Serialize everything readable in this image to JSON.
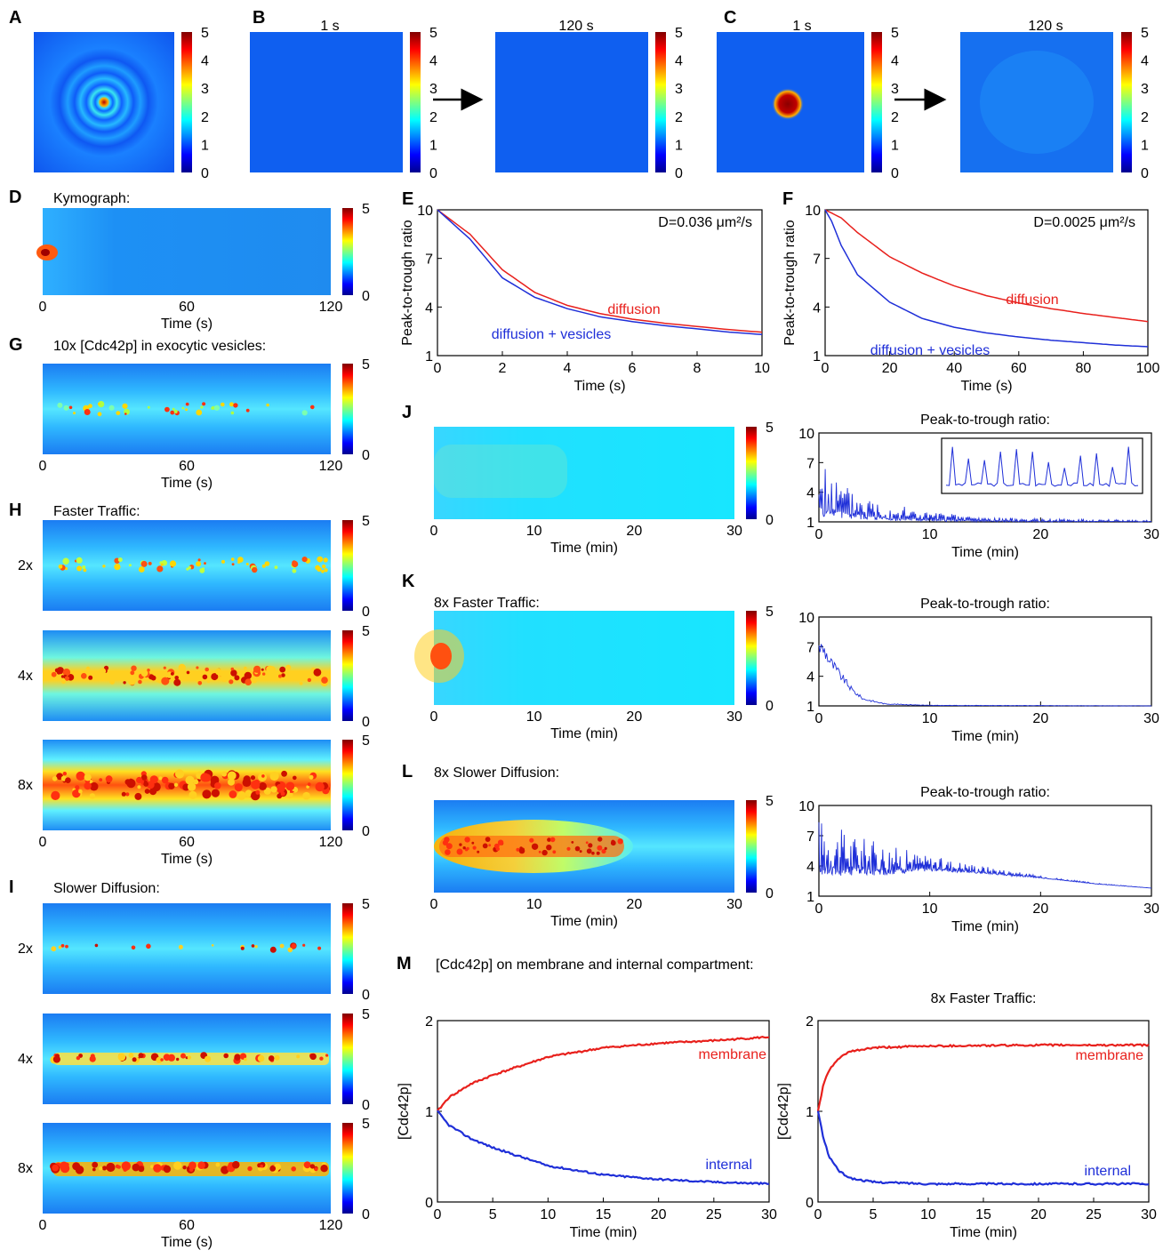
{
  "panels": {
    "A": {
      "label": "A"
    },
    "B": {
      "label": "B",
      "time_start": "1 s",
      "time_end": "120 s"
    },
    "C": {
      "label": "C",
      "time_start": "1 s",
      "time_end": "120 s"
    },
    "D": {
      "label": "D",
      "title": "Kymograph:"
    },
    "E": {
      "label": "E",
      "annotation": "D=0.036 μm²/s"
    },
    "F": {
      "label": "F",
      "annotation": "D=0.0025 μm²/s"
    },
    "G": {
      "label": "G",
      "title": "10x [Cdc42p] in exocytic vesicles:"
    },
    "H": {
      "label": "H",
      "title": "Faster Traffic:",
      "rows": [
        "2x",
        "4x",
        "8x"
      ]
    },
    "I": {
      "label": "I",
      "title": "Slower Diffusion:",
      "rows": [
        "2x",
        "4x",
        "8x"
      ]
    },
    "J": {
      "label": "J",
      "plot_title": "Peak-to-trough ratio:"
    },
    "K": {
      "label": "K",
      "title": "8x Faster Traffic:",
      "plot_title": "Peak-to-trough ratio:"
    },
    "L": {
      "label": "L",
      "title": "8x Slower Diffusion:",
      "plot_title": "Peak-to-trough ratio:"
    },
    "M": {
      "label": "M",
      "title": "[Cdc42p] on membrane and internal compartment:",
      "right_title": "8x Faster Traffic:"
    }
  },
  "axes": {
    "time_s": "Time (s)",
    "time_min": "Time (min)",
    "ptr": "Peak-to-trough ratio",
    "cdc42": "[Cdc42p]"
  },
  "colorbar_ticks_full": [
    "0",
    "1",
    "2",
    "3",
    "4",
    "5"
  ],
  "colorbar_ticks_short": [
    "0",
    "5"
  ],
  "kymo_ticks_s": [
    "0",
    "60",
    "120"
  ],
  "kymo_ticks_min": [
    "0",
    "10",
    "20",
    "30"
  ],
  "colors": {
    "diffusion": "#e8201c",
    "vesicles": "#1f2fd8",
    "membrane": "#e8201c",
    "internal": "#1f2fd8"
  },
  "chart_data": [
    {
      "id": "E",
      "type": "line",
      "xlabel": "Time (s)",
      "ylabel": "Peak-to-trough ratio",
      "xlim": [
        0,
        10
      ],
      "ylim": [
        1,
        10
      ],
      "xticks": [
        0,
        2,
        4,
        6,
        8,
        10
      ],
      "yticks": [
        1,
        4,
        7,
        10
      ],
      "series": [
        {
          "name": "diffusion",
          "color": "#e8201c",
          "x": [
            0,
            1,
            2,
            3,
            4,
            5,
            6,
            7,
            8,
            9,
            10
          ],
          "y": [
            10,
            8.5,
            6.3,
            4.9,
            4.1,
            3.6,
            3.25,
            3.0,
            2.8,
            2.6,
            2.45
          ]
        },
        {
          "name": "diffusion + vesicles",
          "color": "#1f2fd8",
          "x": [
            0,
            1,
            2,
            3,
            4,
            5,
            6,
            7,
            8,
            9,
            10
          ],
          "y": [
            10,
            8.2,
            5.8,
            4.6,
            3.9,
            3.4,
            3.1,
            2.85,
            2.65,
            2.45,
            2.3
          ]
        }
      ]
    },
    {
      "id": "F",
      "type": "line",
      "xlabel": "Time (s)",
      "ylabel": "Peak-to-trough ratio",
      "xlim": [
        0,
        100
      ],
      "ylim": [
        1,
        10
      ],
      "xticks": [
        0,
        20,
        40,
        60,
        80,
        100
      ],
      "yticks": [
        1,
        4,
        7,
        10
      ],
      "series": [
        {
          "name": "diffusion",
          "color": "#e8201c",
          "x": [
            0,
            5,
            10,
            20,
            30,
            40,
            50,
            60,
            70,
            80,
            90,
            100
          ],
          "y": [
            10,
            9.5,
            8.6,
            7.1,
            6.1,
            5.3,
            4.7,
            4.25,
            3.9,
            3.6,
            3.35,
            3.1
          ]
        },
        {
          "name": "diffusion + vesicles",
          "color": "#1f2fd8",
          "x": [
            0,
            2,
            5,
            10,
            20,
            30,
            40,
            50,
            60,
            70,
            80,
            90,
            100
          ],
          "y": [
            10,
            9.3,
            7.8,
            6.0,
            4.3,
            3.3,
            2.75,
            2.4,
            2.15,
            1.95,
            1.8,
            1.65,
            1.55
          ]
        }
      ]
    },
    {
      "id": "J",
      "type": "line",
      "title": "Peak-to-trough ratio:",
      "xlabel": "Time (min)",
      "xlim": [
        0,
        30
      ],
      "ylim": [
        1,
        10
      ],
      "xticks": [
        0,
        10,
        20,
        30
      ],
      "yticks": [
        1,
        4,
        7,
        10
      ],
      "series": [
        {
          "color": "#1f2fd8",
          "x": [
            0,
            1,
            2,
            4,
            6,
            10,
            15,
            20,
            30
          ],
          "y_peak": [
            7,
            6,
            5,
            3.8,
            3,
            2,
            1.5,
            1.3,
            1.2
          ],
          "y_base": [
            1.5,
            1.4,
            1.3,
            1.2,
            1.1,
            1.05,
            1,
            1,
            1
          ]
        }
      ]
    },
    {
      "id": "K",
      "type": "line",
      "title": "Peak-to-trough ratio:",
      "xlabel": "Time (min)",
      "xlim": [
        0,
        30
      ],
      "ylim": [
        1,
        10
      ],
      "xticks": [
        0,
        10,
        20,
        30
      ],
      "yticks": [
        1,
        4,
        7,
        10
      ],
      "series": [
        {
          "color": "#1f2fd8",
          "x": [
            0,
            0.5,
            1,
            2,
            3,
            4,
            6,
            10,
            30
          ],
          "y": [
            7,
            6.6,
            5.5,
            4,
            2.6,
            1.7,
            1.2,
            1.05,
            1
          ]
        }
      ]
    },
    {
      "id": "L",
      "type": "line",
      "title": "Peak-to-trough ratio:",
      "xlabel": "Time (min)",
      "xlim": [
        0,
        30
      ],
      "ylim": [
        1,
        10
      ],
      "xticks": [
        0,
        10,
        20,
        30
      ],
      "yticks": [
        1,
        4,
        7,
        10
      ],
      "series": [
        {
          "color": "#1f2fd8",
          "x": [
            0,
            1,
            5,
            10,
            15,
            20,
            25,
            30
          ],
          "y_peak": [
            9,
            8,
            6.5,
            5,
            4,
            3,
            2.3,
            1.8
          ],
          "y_base": [
            3,
            3,
            3,
            3.5,
            3.2,
            2.8,
            2.2,
            1.8
          ]
        }
      ]
    },
    {
      "id": "M-left",
      "type": "line",
      "xlabel": "Time (min)",
      "ylabel": "[Cdc42p]",
      "xlim": [
        0,
        30
      ],
      "ylim": [
        0,
        2
      ],
      "xticks": [
        0,
        5,
        10,
        15,
        20,
        25,
        30
      ],
      "yticks": [
        0,
        1,
        2
      ],
      "series": [
        {
          "name": "membrane",
          "color": "#e8201c",
          "x": [
            0,
            1,
            3,
            5,
            10,
            15,
            20,
            25,
            30
          ],
          "y": [
            1,
            1.15,
            1.3,
            1.4,
            1.6,
            1.7,
            1.75,
            1.78,
            1.82
          ]
        },
        {
          "name": "internal",
          "color": "#1f2fd8",
          "x": [
            0,
            1,
            3,
            5,
            10,
            15,
            20,
            25,
            30
          ],
          "y": [
            1,
            0.85,
            0.7,
            0.6,
            0.4,
            0.3,
            0.25,
            0.22,
            0.2
          ]
        }
      ]
    },
    {
      "id": "M-right",
      "type": "line",
      "title": "8x Faster Traffic:",
      "xlabel": "Time (min)",
      "ylabel": "[Cdc42p]",
      "xlim": [
        0,
        30
      ],
      "ylim": [
        0,
        2
      ],
      "xticks": [
        0,
        5,
        10,
        15,
        20,
        25,
        30
      ],
      "yticks": [
        0,
        1,
        2
      ],
      "series": [
        {
          "name": "membrane",
          "color": "#e8201c",
          "x": [
            0,
            0.5,
            1,
            2,
            3,
            5,
            10,
            20,
            30
          ],
          "y": [
            1,
            1.3,
            1.45,
            1.6,
            1.66,
            1.7,
            1.72,
            1.73,
            1.73
          ]
        },
        {
          "name": "internal",
          "color": "#1f2fd8",
          "x": [
            0,
            0.5,
            1,
            2,
            3,
            5,
            10,
            20,
            30
          ],
          "y": [
            1,
            0.7,
            0.5,
            0.33,
            0.26,
            0.22,
            0.2,
            0.2,
            0.2
          ]
        }
      ]
    }
  ]
}
